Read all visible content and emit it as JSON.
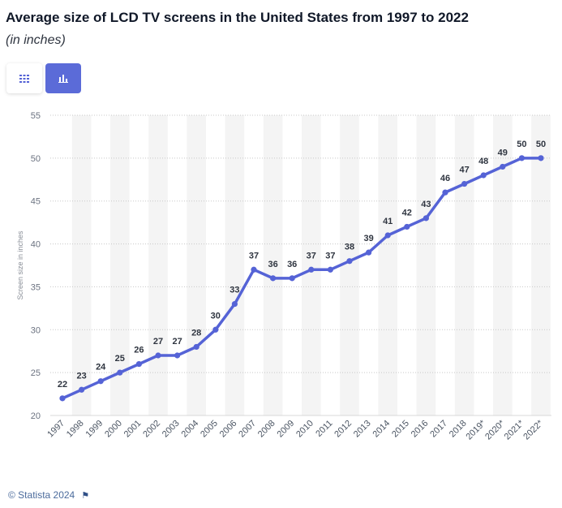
{
  "header": {
    "title": "Average size of LCD TV screens in the United States from 1997 to 2022",
    "subtitle": "(in inches)"
  },
  "toolbar": {
    "table_icon": "table-grid-icon",
    "chart_icon": "bar-chart-icon"
  },
  "footer": {
    "copyright": "© Statista 2024",
    "flag_icon": "flag-icon"
  },
  "colors": {
    "line": "#5563d6",
    "accent_button": "#5b6bd8",
    "band": "#f4f4f4"
  },
  "chart_data": {
    "type": "line",
    "title": "Average size of LCD TV screens in the United States from 1997 to 2022",
    "subtitle": "(in inches)",
    "xlabel": "",
    "ylabel": "Screen size in inches",
    "ylim": [
      20,
      55
    ],
    "yticks": [
      20,
      25,
      30,
      35,
      40,
      45,
      50,
      55
    ],
    "grid": true,
    "categories": [
      "1997",
      "1998",
      "1999",
      "2000",
      "2001",
      "2002",
      "2003",
      "2004",
      "2005",
      "2006",
      "2007",
      "2008",
      "2009",
      "2010",
      "2011",
      "2012",
      "2013",
      "2014",
      "2015",
      "2016",
      "2017",
      "2018",
      "2019*",
      "2020*",
      "2021*",
      "2022*"
    ],
    "values": [
      22,
      23,
      24,
      25,
      26,
      27,
      27,
      28,
      30,
      33,
      37,
      36,
      36,
      37,
      37,
      38,
      39,
      41,
      42,
      43,
      46,
      47,
      48,
      49,
      50,
      50
    ]
  }
}
